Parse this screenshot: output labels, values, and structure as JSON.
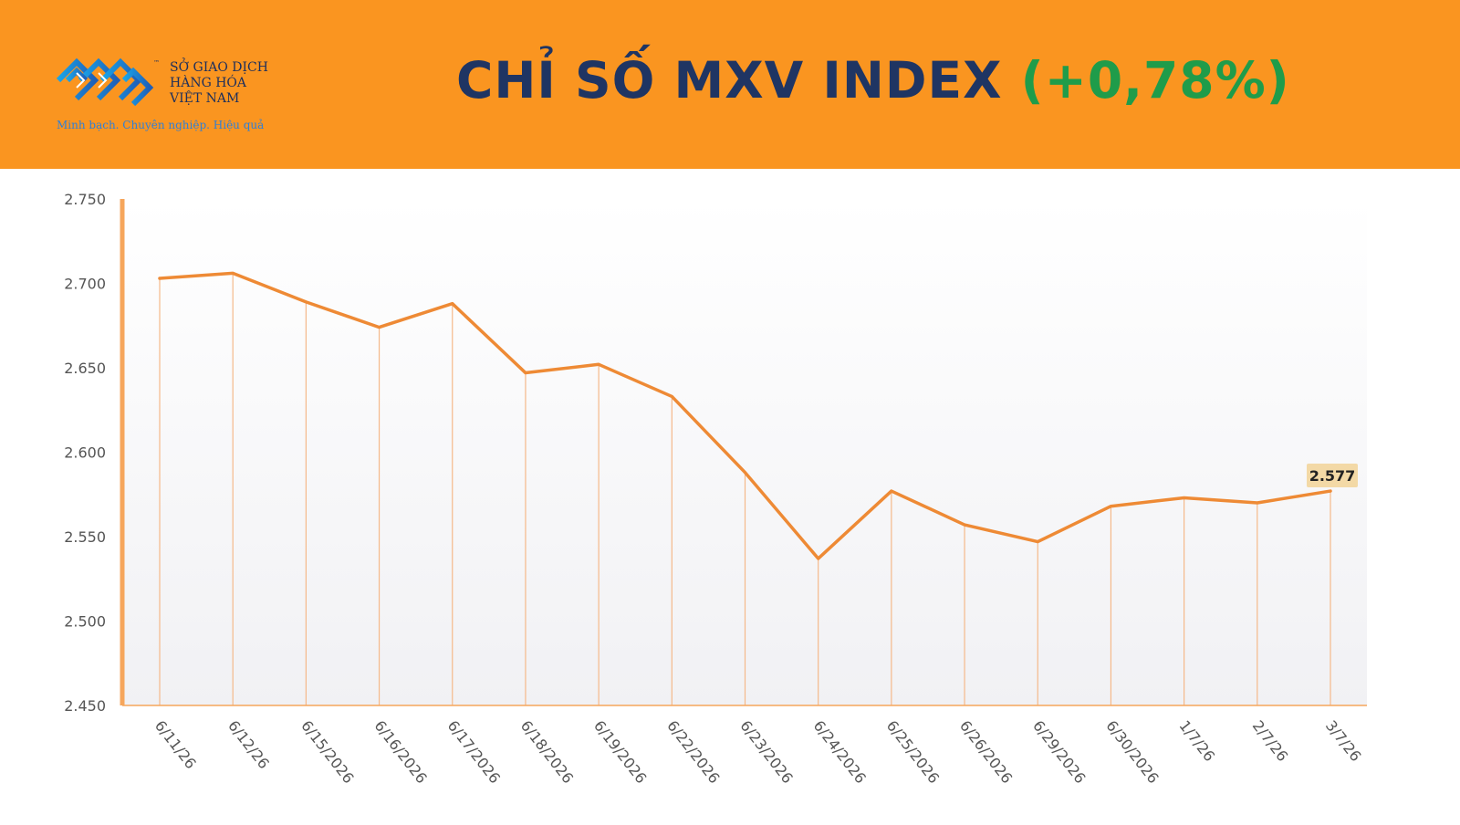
{
  "header": {
    "logo": {
      "lines": [
        "SỞ GIAO DỊCH",
        "HÀNG HÓA",
        "VIỆT NAM"
      ],
      "tm": "™",
      "slogan": "Minh bạch. Chuyên nghiệp. Hiệu quả"
    },
    "title_main": "CHỈ SỐ MXV INDEX",
    "title_change": "(+0,78%)",
    "colors": {
      "band": "#fa9520",
      "title": "#1f3563",
      "change": "#1f9c4a"
    }
  },
  "chart_data": {
    "type": "line",
    "x": [
      "6/11/26",
      "6/12/26",
      "6/15/2026",
      "6/16/2026",
      "6/17/2026",
      "6/18/2026",
      "6/19/2026",
      "6/22/2026",
      "6/23/2026",
      "6/24/2026",
      "6/25/2026",
      "6/26/2026",
      "6/29/2026",
      "6/30/2026",
      "1/7/26",
      "2/7/26",
      "3/7/26"
    ],
    "series": [
      {
        "values": [
          2703,
          2706,
          2689,
          2674,
          2688,
          2647,
          2652,
          2633,
          2588,
          2537,
          2577,
          2557,
          2547,
          2568,
          2573,
          2570,
          2577
        ]
      }
    ],
    "yticks": [
      "2.750",
      "2.700",
      "2.650",
      "2.600",
      "2.550",
      "2.500",
      "2.450"
    ],
    "ylim": [
      2450,
      2750
    ],
    "last_label": "2.577",
    "grid": false,
    "colors": {
      "line": "#ee8a35",
      "drop": "#f5b98a",
      "axis": "#f6a65c",
      "label_bg": "#f3d9a6"
    }
  }
}
